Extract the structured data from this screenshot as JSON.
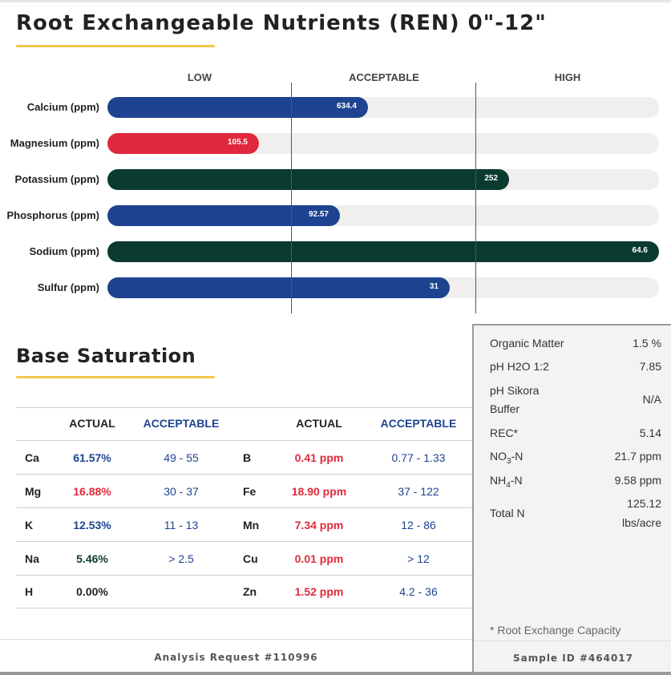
{
  "ren": {
    "title": "Root Exchangeable Nutrients (REN) 0\"-12\"",
    "columns": [
      "LOW",
      "ACCEPTABLE",
      "HIGH"
    ],
    "bars": [
      {
        "label": "Calcium (ppm)",
        "value": "634.4",
        "fraction": 0.472,
        "color": "#1e4390"
      },
      {
        "label": "Magnesium (ppm)",
        "value": "105.5",
        "fraction": 0.275,
        "color": "#e2283c"
      },
      {
        "label": "Potassium (ppm)",
        "value": "252",
        "fraction": 0.728,
        "color": "#0b3b2e"
      },
      {
        "label": "Phosphorus (ppm)",
        "value": "92.57",
        "fraction": 0.421,
        "color": "#1e4390"
      },
      {
        "label": "Sodium (ppm)",
        "value": "64.6",
        "fraction": 1.0,
        "color": "#0b3b2e"
      },
      {
        "label": "Sulfur (ppm)",
        "value": "31",
        "fraction": 0.621,
        "color": "#1e4390"
      }
    ]
  },
  "base_saturation": {
    "title": "Base Saturation",
    "headers": {
      "actual": "ACTUAL",
      "acceptable": "ACCEPTABLE",
      "actual2": "ACTUAL",
      "acceptable2": "ACCEPTABLE"
    },
    "rows": [
      {
        "el": "Ca",
        "actual": "61.57%",
        "actual_color": "#1e4390",
        "range": "49 - 55",
        "el2": "B",
        "actual2": "0.41 ppm",
        "range2": "0.77 - 1.33"
      },
      {
        "el": "Mg",
        "actual": "16.88%",
        "actual_color": "#e2283c",
        "range": "30 - 37",
        "el2": "Fe",
        "actual2": "18.90 ppm",
        "range2": "37 - 122"
      },
      {
        "el": "K",
        "actual": "12.53%",
        "actual_color": "#1e4390",
        "range": "11 - 13",
        "el2": "Mn",
        "actual2": "7.34 ppm",
        "range2": "12 - 86"
      },
      {
        "el": "Na",
        "actual": "5.46%",
        "actual_color": "#0b3b2e",
        "range": "> 2.5",
        "el2": "Cu",
        "actual2": "0.01 ppm",
        "range2": "> 12"
      },
      {
        "el": "H",
        "actual": "0.00%",
        "actual_color": "#222222",
        "range": "",
        "el2": "Zn",
        "actual2": "1.52 ppm",
        "range2": "4.2 - 36"
      }
    ],
    "colors": {
      "blue": "#1e4390",
      "red": "#e2283c"
    }
  },
  "properties": {
    "om_label": "Organic Matter",
    "om_value": "1.5 %",
    "ph_label": "pH H2O 1:2",
    "ph_value": "7.85",
    "sikora_label_1": "pH Sikora",
    "sikora_label_2": "Buffer",
    "sikora_value": "N/A",
    "rec_label": "REC*",
    "rec_value": "5.14",
    "no3_label_pre": "NO",
    "no3_sub": "3",
    "no3_label_post": "-N",
    "no3_value": "21.7 ppm",
    "nh4_label_pre": "NH",
    "nh4_sub": "4",
    "nh4_label_post": "-N",
    "nh4_value": "9.58 ppm",
    "totaln_label": "Total N",
    "totaln_value_1": "125.12",
    "totaln_value_2": "lbs/acre",
    "footnote": "* Root Exchange Capacity"
  },
  "footer": {
    "analysis_request": "Analysis Request #110996",
    "sample_id": "Sample ID #464017"
  }
}
